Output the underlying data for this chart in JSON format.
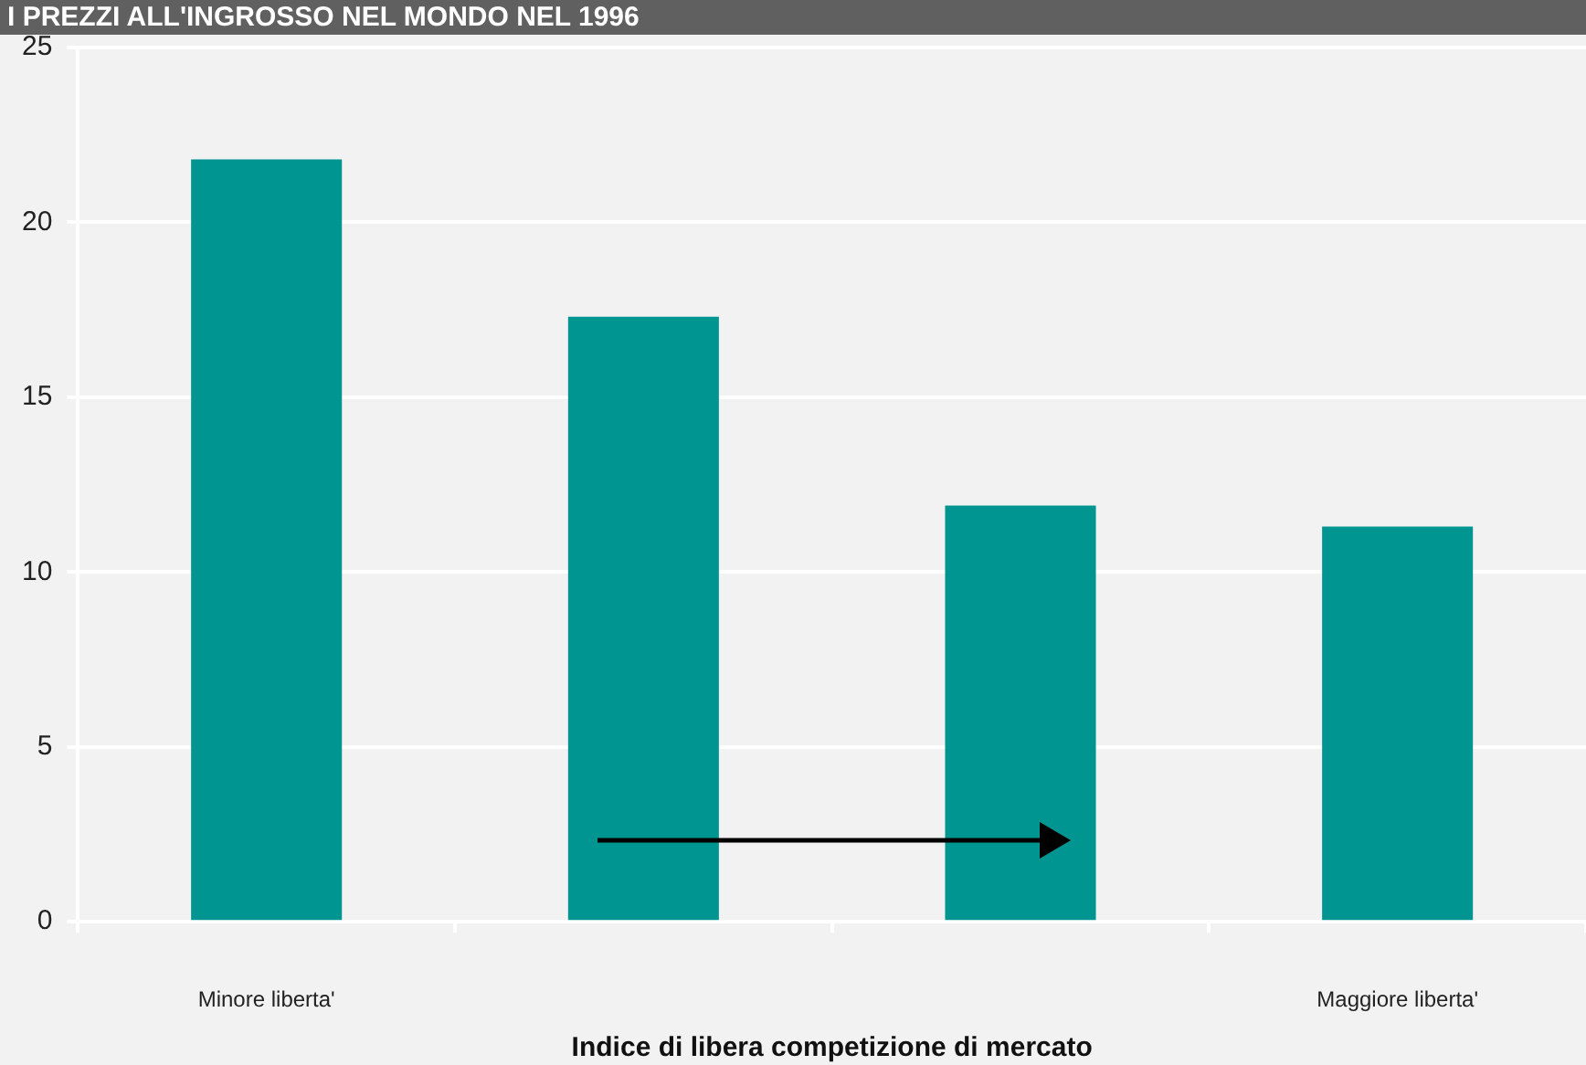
{
  "chart_data": {
    "type": "bar",
    "title": "I PREZZI ALL'INGROSSO NEL MONDO NEL 1996",
    "xlabel": "Indice di libera competizione di mercato",
    "categories": [
      "Minore liberta'",
      null,
      null,
      "Maggiore liberta'"
    ],
    "values": [
      21.8,
      17.3,
      11.9,
      11.3
    ],
    "color": "#009590",
    "ylim": [
      0,
      25
    ],
    "yticks": [
      0,
      5,
      10,
      15,
      20,
      25
    ],
    "grid": "y"
  }
}
